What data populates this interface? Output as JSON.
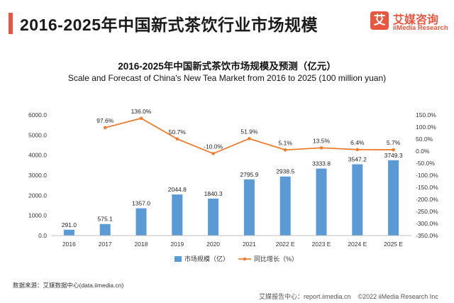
{
  "header": {
    "title": "2016-2025年中国新式茶饮行业市场规模",
    "logo_mark": "艾",
    "logo_cn": "艾媒咨询",
    "logo_en": "iiMedia Research"
  },
  "chart_data": {
    "type": "bar",
    "title": "2016-2025年中国新式茶饮市场规模及预测（亿元）",
    "subtitle": "Scale and Forecast of China's New Tea Market from 2016 to 2025 (100 million yuan)",
    "categories": [
      "2016",
      "2017",
      "2018",
      "2019",
      "2020",
      "2021",
      "2022 E",
      "2023 E",
      "2024 E",
      "2025 E"
    ],
    "series": [
      {
        "name": "市场规模（亿）",
        "type": "bar",
        "axis": "left",
        "color": "#5b9bd5",
        "values": [
          291.0,
          575.1,
          1357.0,
          2044.8,
          1840.3,
          2795.9,
          2938.5,
          3333.8,
          3547.2,
          3749.3
        ],
        "labels": [
          "291.0",
          "575.1",
          "1357.0",
          "2044.8",
          "1840.3",
          "2795.9",
          "2938.5",
          "3333.8",
          "3547.2",
          "3749.3"
        ]
      },
      {
        "name": "同比增长（%）",
        "type": "line",
        "axis": "right",
        "color": "#ed7d31",
        "values": [
          null,
          97.6,
          136.0,
          50.7,
          -10.0,
          51.9,
          5.1,
          13.5,
          6.4,
          5.7
        ],
        "labels": [
          "",
          "97.6%",
          "136.0%",
          "50.7%",
          "-10.0%",
          "51.9%",
          "5.1%",
          "13.5%",
          "6.4%",
          "5.7%"
        ]
      }
    ],
    "y_left": {
      "ylim": [
        0,
        6000
      ],
      "ticks": [
        0,
        1000,
        2000,
        3000,
        4000,
        5000,
        6000
      ],
      "tick_labels": [
        "0.0",
        "1000.0",
        "2000.0",
        "3000.0",
        "4000.0",
        "5000.0",
        "6000.0"
      ]
    },
    "y_right": {
      "ylim": [
        -350,
        150
      ],
      "ticks": [
        150,
        100,
        50,
        0,
        -50,
        -100,
        -150,
        -200,
        -250,
        -300,
        -350
      ],
      "tick_labels": [
        "150.0%",
        "100.0%",
        "50.0%",
        "0.0%",
        "-50.0%",
        "-100.0%",
        "-150.0%",
        "-200.0%",
        "-250.0%",
        "-300.0%",
        "-350.0%"
      ]
    },
    "grid": false,
    "legend_position": "bottom"
  },
  "source_text": "数据来源：艾媒数据中心(data.iimedia.cn)",
  "footer": {
    "report": "艾媒报告中心：report.iimedia.cn",
    "copyright": "©2022  iiMedia Research  Inc"
  }
}
